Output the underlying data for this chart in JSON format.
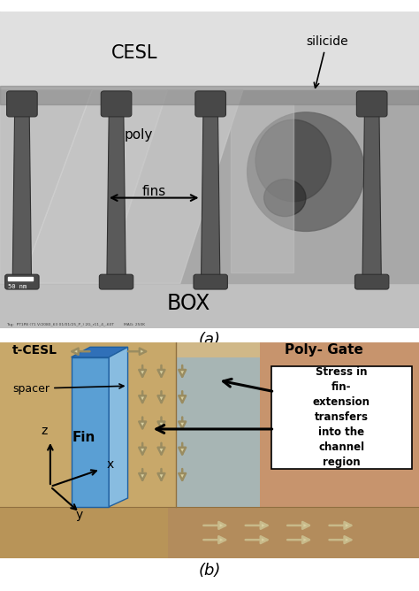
{
  "fig_width": 4.74,
  "fig_height": 6.68,
  "dpi": 100,
  "panel_a": {
    "label": "(a)",
    "cesl_text": "CESL",
    "poly_text": "poly",
    "fins_text": "fins",
    "box_text": "BOX",
    "silicide_text": "silicide",
    "scale_text": "50 nm",
    "metadata_text": "Tag:  PT1P8 (71 V/2080_63 01/01/25_P_) 2G_r11_4_-60T        MAG: 250K",
    "bg_light": "#e8e8e8",
    "bg_mid": "#b0b0b0",
    "bg_dark": "#707070",
    "fin_color": "#5a5a5a",
    "fin_outline": "#303030",
    "cesl_top": "#d8d8d8",
    "box_bottom": "#c5c5c5"
  },
  "panel_b": {
    "label": "(b)",
    "tcesl_text": "t-CESL",
    "spacer_text": "spacer",
    "fin_label": "Fin",
    "polygate_text": "Poly- Gate",
    "stress_text": "Stress in\nfin-\nextension\ntransfers\ninto the\nchannel\nregion",
    "axis_x": "x",
    "axis_y": "y",
    "axis_z": "z",
    "left_wall_color": "#c8a86a",
    "floor_color": "#b89458",
    "back_wall_top": "#c8a870",
    "back_wall_mid": "#c09878",
    "poly_region_color": "#c07858",
    "fin_front_color": "#5a9fd4",
    "fin_side_color": "#88bce0",
    "fin_top_color": "#3070b8",
    "channel_region": "#9ab4c4",
    "arrow_fill": "#d8cfa0",
    "arrow_edge": "#9a8c60",
    "floor_mid": "#b08860",
    "floor_right": "#b09070"
  }
}
